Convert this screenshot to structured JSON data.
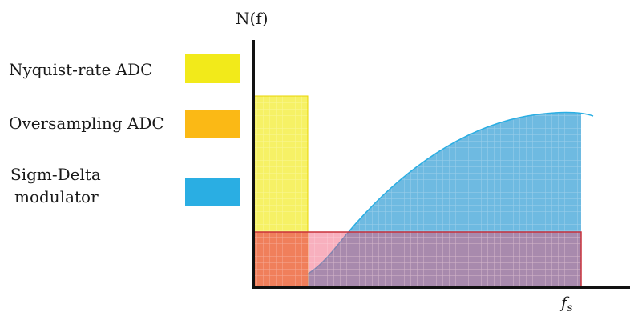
{
  "diagram": {
    "y_axis_label": "N(f)",
    "x_axis_label": "f",
    "x_axis_label_subscript": "s",
    "legend": [
      {
        "lines": [
          "Nyquist-rate ADC"
        ],
        "color": "#f2ea1a"
      },
      {
        "lines": [
          "Oversampling ADC"
        ],
        "color": "#fbb915"
      },
      {
        "lines": [
          "Sigm-Delta",
          "modulator"
        ],
        "color": "#2aaee3"
      }
    ],
    "regions": {
      "nyquist_fill": "#f5ef4a",
      "oversampling_fill": "#f07a5a",
      "sigma_delta_fill": "#4aa9da",
      "noise_band_stroke": "#c8323c"
    }
  }
}
